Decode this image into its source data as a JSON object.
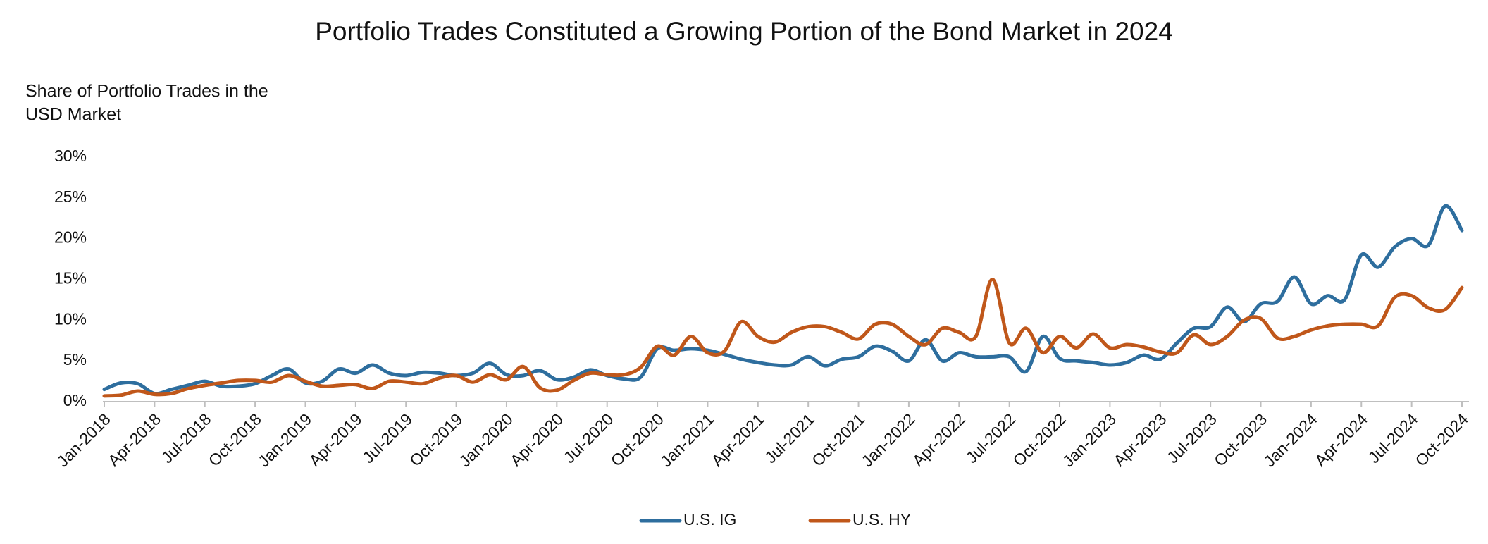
{
  "chart_data": {
    "type": "line",
    "title": "Portfolio Trades Constituted a Growing Portion of the Bond Market in 2024",
    "y_label_lines": [
      "Share of Portfolio Trades in the",
      "USD Market"
    ],
    "categories": [
      "Jan-2018",
      null,
      null,
      "Apr-2018",
      null,
      null,
      "Jul-2018",
      null,
      null,
      "Oct-2018",
      null,
      null,
      "Jan-2019",
      null,
      null,
      "Apr-2019",
      null,
      null,
      "Jul-2019",
      null,
      null,
      "Oct-2019",
      null,
      null,
      "Jan-2020",
      null,
      null,
      "Apr-2020",
      null,
      null,
      "Jul-2020",
      null,
      null,
      "Oct-2020",
      null,
      null,
      "Jan-2021",
      null,
      null,
      "Apr-2021",
      null,
      null,
      "Jul-2021",
      null,
      null,
      "Oct-2021",
      null,
      null,
      "Jan-2022",
      null,
      null,
      "Apr-2022",
      null,
      null,
      "Jul-2022",
      null,
      null,
      "Oct-2022",
      null,
      null,
      "Jan-2023",
      null,
      null,
      "Apr-2023",
      null,
      null,
      "Jul-2023",
      null,
      null,
      "Oct-2023",
      null,
      null,
      "Jan-2024",
      null,
      null,
      "Apr-2024",
      null,
      null,
      "Jul-2024",
      null,
      null,
      "Oct-2024"
    ],
    "series": [
      {
        "name": "U.S. IG",
        "color": "#2e6e9e",
        "values": [
          1.5,
          2.3,
          2.2,
          1.0,
          1.5,
          2.0,
          2.5,
          1.9,
          1.9,
          2.2,
          3.2,
          4.0,
          2.3,
          2.5,
          4.0,
          3.5,
          4.5,
          3.5,
          3.2,
          3.6,
          3.5,
          3.2,
          3.5,
          4.7,
          3.3,
          3.2,
          3.8,
          2.7,
          3.0,
          3.9,
          3.2,
          2.8,
          3.0,
          6.5,
          6.3,
          6.5,
          6.3,
          5.8,
          5.2,
          4.8,
          4.5,
          4.5,
          5.5,
          4.4,
          5.2,
          5.5,
          6.8,
          6.2,
          5.0,
          7.6,
          5.0,
          6.0,
          5.5,
          5.5,
          5.5,
          3.7,
          8.0,
          5.3,
          5.0,
          4.8,
          4.5,
          4.8,
          5.7,
          5.2,
          7.2,
          9.0,
          9.2,
          11.6,
          9.8,
          12.0,
          12.3,
          15.3,
          12.0,
          13.0,
          12.5,
          18.0,
          16.5,
          19.0,
          20.0,
          19.2,
          24.0,
          21.0
        ]
      },
      {
        "name": "U.S. HY",
        "color": "#c0571a",
        "values": [
          0.7,
          0.8,
          1.3,
          0.9,
          1.0,
          1.6,
          2.0,
          2.3,
          2.6,
          2.6,
          2.4,
          3.2,
          2.5,
          1.9,
          2.0,
          2.1,
          1.6,
          2.5,
          2.4,
          2.2,
          2.9,
          3.2,
          2.4,
          3.3,
          2.7,
          4.3,
          1.7,
          1.4,
          2.6,
          3.5,
          3.3,
          3.3,
          4.2,
          6.8,
          5.7,
          8.0,
          6.0,
          6.2,
          9.8,
          8.0,
          7.3,
          8.5,
          9.2,
          9.2,
          8.5,
          7.7,
          9.5,
          9.5,
          8.0,
          7.0,
          9.0,
          8.5,
          8.0,
          15.0,
          7.2,
          9.0,
          6.0,
          8.0,
          6.6,
          8.3,
          6.6,
          7.0,
          6.7,
          6.1,
          6.0,
          8.2,
          7.0,
          8.0,
          10.0,
          10.2,
          7.8,
          8.0,
          8.8,
          9.3,
          9.5,
          9.5,
          9.3,
          12.8,
          13.0,
          11.5,
          11.3,
          14.0
        ]
      }
    ],
    "ylim": [
      0,
      30
    ],
    "yticks": [
      {
        "value": 0,
        "label": "0%"
      },
      {
        "value": 5,
        "label": "5%"
      },
      {
        "value": 10,
        "label": "10%"
      },
      {
        "value": 15,
        "label": "15%"
      },
      {
        "value": 20,
        "label": "20%"
      },
      {
        "value": 25,
        "label": "25%"
      },
      {
        "value": 30,
        "label": "30%"
      }
    ],
    "grid": false,
    "legend": "bottom"
  }
}
